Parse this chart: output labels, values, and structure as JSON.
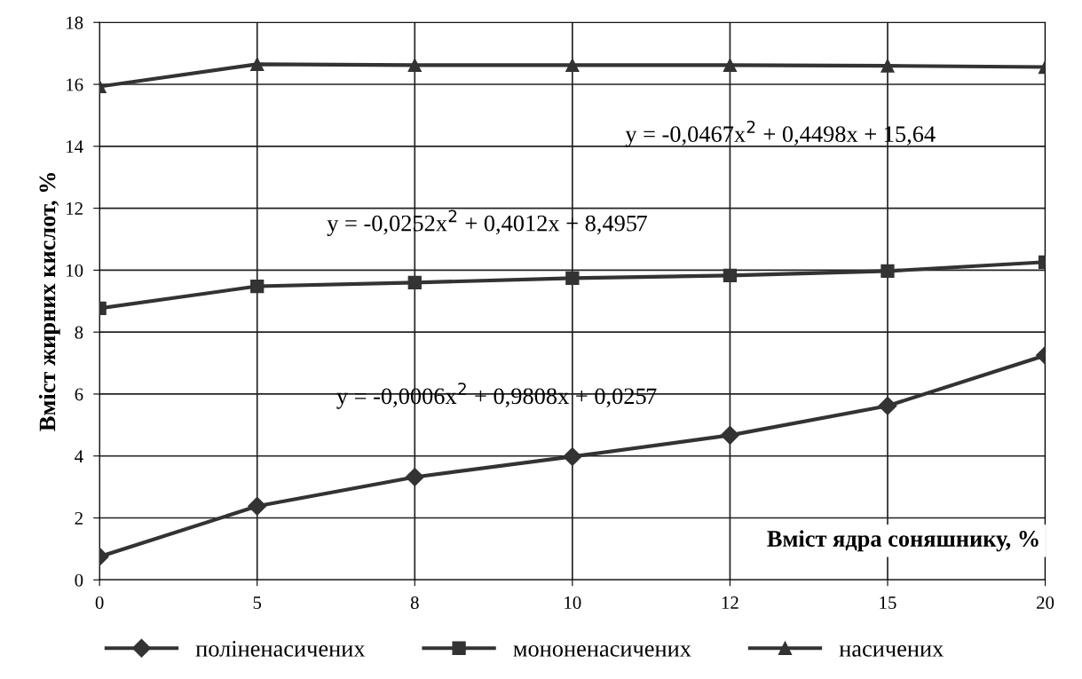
{
  "chart_data": {
    "type": "line",
    "xlabel": "Вміст ядра соняшнику, %",
    "ylabel": "Вміст жирних кислот, %",
    "categories": [
      "0",
      "5",
      "8",
      "10",
      "12",
      "15",
      "20"
    ],
    "series": [
      {
        "name": "поліненасичених",
        "color": "#333333",
        "marker": "diamond",
        "values": [
          0.75,
          2.38,
          3.32,
          3.98,
          4.67,
          5.62,
          7.25
        ]
      },
      {
        "name": "мононенасичених",
        "color": "#333333",
        "marker": "square",
        "values": [
          8.77,
          9.48,
          9.6,
          9.74,
          9.83,
          9.97,
          10.26
        ]
      },
      {
        "name": "насичених",
        "color": "#333333",
        "marker": "triangle",
        "values": [
          15.93,
          16.65,
          16.62,
          16.62,
          16.62,
          16.6,
          16.56
        ]
      }
    ],
    "annotations": [
      "y = -0,0467x$^{2}$ + 0,4498x + 15,64",
      "y = -0,0252x$^{2}$ + 0,4012x + 8,4957",
      "y = -0,0006x$^{2}$ + 0,9808x + 0,0257"
    ],
    "ylim": [
      0,
      18
    ],
    "yticks": [
      0,
      2,
      4,
      6,
      8,
      10,
      12,
      14,
      16,
      18
    ],
    "grid": true,
    "legend": "bottom",
    "line_style": "solid"
  }
}
